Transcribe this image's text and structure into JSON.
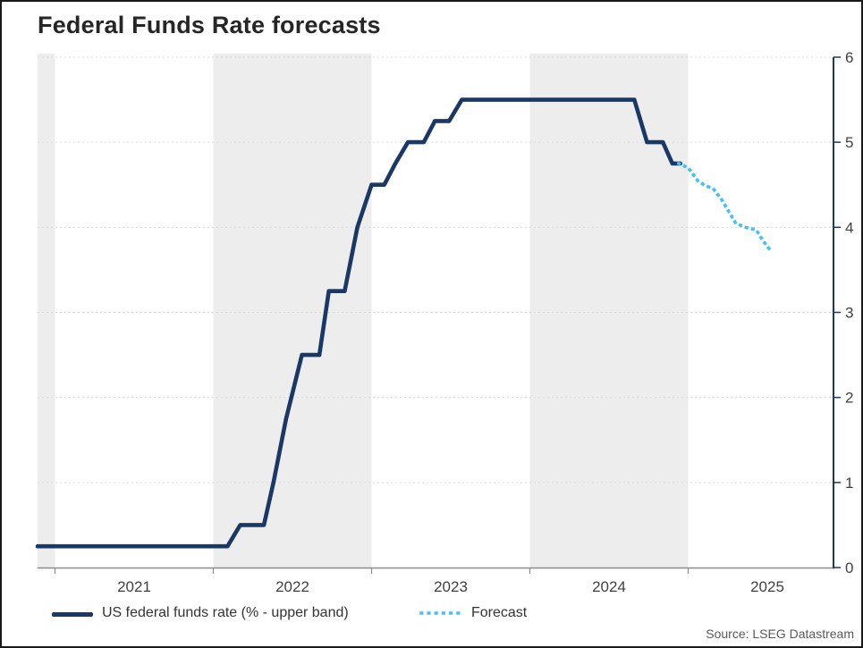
{
  "title": "Federal Funds Rate forecasts",
  "source": "Source: LSEG Datastream",
  "colors": {
    "historical_line": "#1a3866",
    "forecast_line": "#41c1f5",
    "shade_band": "#ededed",
    "gridline": "#d9d9d9",
    "x_axis": "#8c8c8c",
    "y_axis": "#1a3866",
    "tick_label": "#404040"
  },
  "legend": [
    {
      "label": "US federal funds rate (% - upper band)",
      "style": "solid"
    },
    {
      "label": "Forecast",
      "style": "dotted"
    }
  ],
  "chart_data": {
    "type": "line",
    "title": "Federal Funds Rate forecasts",
    "xlabel": "",
    "ylabel": "",
    "x_tick_labels": [
      "2021",
      "2022",
      "2023",
      "2024",
      "2025"
    ],
    "x_tick_years": [
      2021,
      2022,
      2023,
      2024,
      2025
    ],
    "y_tick_labels": [
      "0",
      "1",
      "2",
      "3",
      "4",
      "5",
      "6"
    ],
    "y_ticks": [
      0,
      1,
      2,
      3,
      4,
      5,
      6
    ],
    "ylim": [
      0,
      6
    ],
    "x_range_years": [
      2020.89,
      2025.92
    ],
    "grid": "horizontal-dashed",
    "legend_position": "bottom-left",
    "shaded_year_bands": [
      [
        2020.89,
        2021
      ],
      [
        2022,
        2023
      ],
      [
        2024,
        2025
      ]
    ],
    "series": [
      {
        "name": "US federal funds rate (% - upper band)",
        "style": "solid",
        "points": [
          [
            2020.89,
            0.25
          ],
          [
            2022.09,
            0.25
          ],
          [
            2022.17,
            0.5
          ],
          [
            2022.32,
            0.5
          ],
          [
            2022.38,
            1.0
          ],
          [
            2022.46,
            1.75
          ],
          [
            2022.56,
            2.5
          ],
          [
            2022.67,
            2.5
          ],
          [
            2022.73,
            3.25
          ],
          [
            2022.83,
            3.25
          ],
          [
            2022.91,
            4.0
          ],
          [
            2023.0,
            4.5
          ],
          [
            2023.08,
            4.5
          ],
          [
            2023.15,
            4.75
          ],
          [
            2023.23,
            5.0
          ],
          [
            2023.33,
            5.0
          ],
          [
            2023.4,
            5.25
          ],
          [
            2023.49,
            5.25
          ],
          [
            2023.57,
            5.5
          ],
          [
            2024.66,
            5.5
          ],
          [
            2024.74,
            5.0
          ],
          [
            2024.84,
            5.0
          ],
          [
            2024.9,
            4.75
          ],
          [
            2024.95,
            4.75
          ]
        ]
      },
      {
        "name": "Forecast",
        "style": "dotted",
        "points": [
          [
            2024.94,
            4.75
          ],
          [
            2025.0,
            4.7
          ],
          [
            2025.06,
            4.55
          ],
          [
            2025.1,
            4.5
          ],
          [
            2025.16,
            4.45
          ],
          [
            2025.21,
            4.33
          ],
          [
            2025.3,
            4.05
          ],
          [
            2025.36,
            4.0
          ],
          [
            2025.43,
            3.97
          ],
          [
            2025.47,
            3.85
          ],
          [
            2025.51,
            3.75
          ]
        ]
      }
    ]
  }
}
